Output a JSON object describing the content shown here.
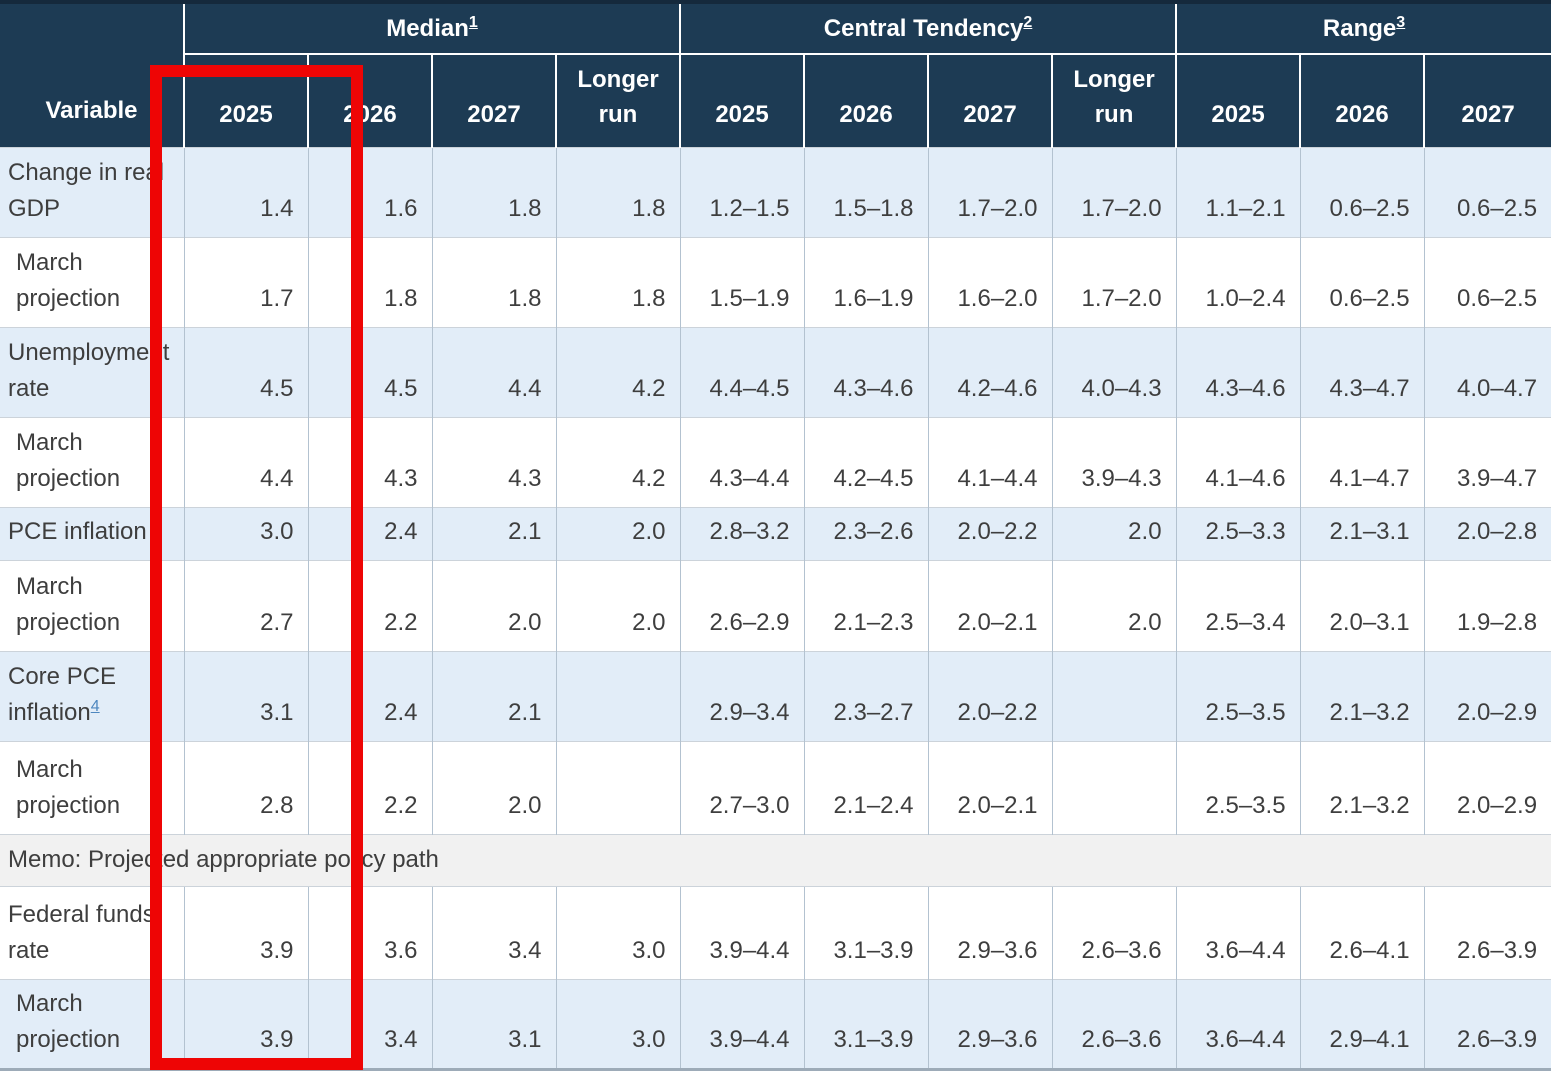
{
  "annotation": {
    "shape": "rectangle",
    "color": "#ee0505",
    "highlights": "Median 2025 column"
  },
  "chart_data": {
    "type": "table",
    "variable_label": "Variable",
    "groups": [
      {
        "label": "Median",
        "footnote": "1",
        "years": [
          "2025",
          "2026",
          "2027",
          "Longer run"
        ]
      },
      {
        "label": "Central Tendency",
        "footnote": "2",
        "years": [
          "2025",
          "2026",
          "2027",
          "Longer run"
        ]
      },
      {
        "label": "Range",
        "footnote": "3",
        "years": [
          "2025",
          "2026",
          "2027"
        ]
      }
    ],
    "rows": [
      {
        "label": "Change in real GDP",
        "shade": "blue",
        "indent": false,
        "median": [
          "1.4",
          "1.6",
          "1.8",
          "1.8"
        ],
        "central_tendency": [
          "1.2–1.5",
          "1.5–1.8",
          "1.7–2.0",
          "1.7–2.0"
        ],
        "range": [
          "1.1–2.1",
          "0.6–2.5",
          "0.6–2.5"
        ]
      },
      {
        "label": "March projection",
        "shade": "white",
        "indent": true,
        "median": [
          "1.7",
          "1.8",
          "1.8",
          "1.8"
        ],
        "central_tendency": [
          "1.5–1.9",
          "1.6–1.9",
          "1.6–2.0",
          "1.7–2.0"
        ],
        "range": [
          "1.0–2.4",
          "0.6–2.5",
          "0.6–2.5"
        ]
      },
      {
        "label": "Unemployment rate",
        "shade": "blue",
        "indent": false,
        "median": [
          "4.5",
          "4.5",
          "4.4",
          "4.2"
        ],
        "central_tendency": [
          "4.4–4.5",
          "4.3–4.6",
          "4.2–4.6",
          "4.0–4.3"
        ],
        "range": [
          "4.3–4.6",
          "4.3–4.7",
          "4.0–4.7"
        ]
      },
      {
        "label": "March projection",
        "shade": "white",
        "indent": true,
        "median": [
          "4.4",
          "4.3",
          "4.3",
          "4.2"
        ],
        "central_tendency": [
          "4.3–4.4",
          "4.2–4.5",
          "4.1–4.4",
          "3.9–4.3"
        ],
        "range": [
          "4.1–4.6",
          "4.1–4.7",
          "3.9–4.7"
        ]
      },
      {
        "label": "PCE inflation",
        "shade": "blue",
        "indent": false,
        "median": [
          "3.0",
          "2.4",
          "2.1",
          "2.0"
        ],
        "central_tendency": [
          "2.8–3.2",
          "2.3–2.6",
          "2.0–2.2",
          "2.0"
        ],
        "range": [
          "2.5–3.3",
          "2.1–3.1",
          "2.0–2.8"
        ]
      },
      {
        "label": "March projection",
        "shade": "white",
        "indent": true,
        "median": [
          "2.7",
          "2.2",
          "2.0",
          "2.0"
        ],
        "central_tendency": [
          "2.6–2.9",
          "2.1–2.3",
          "2.0–2.1",
          "2.0"
        ],
        "range": [
          "2.5–3.4",
          "2.0–3.1",
          "1.9–2.8"
        ]
      },
      {
        "label": "Core PCE inflation",
        "footnote": "4",
        "shade": "blue",
        "indent": false,
        "median": [
          "3.1",
          "2.4",
          "2.1",
          ""
        ],
        "central_tendency": [
          "2.9–3.4",
          "2.3–2.7",
          "2.0–2.2",
          ""
        ],
        "range": [
          "2.5–3.5",
          "2.1–3.2",
          "2.0–2.9"
        ]
      },
      {
        "label": "March projection",
        "shade": "white",
        "indent": true,
        "median": [
          "2.8",
          "2.2",
          "2.0",
          ""
        ],
        "central_tendency": [
          "2.7–3.0",
          "2.1–2.4",
          "2.0–2.1",
          ""
        ],
        "range": [
          "2.5–3.5",
          "2.1–3.2",
          "2.0–2.9"
        ]
      },
      {
        "type": "memo",
        "shade": "memo",
        "label": "Memo: Projected appropriate policy path"
      },
      {
        "label": "Federal funds rate",
        "shade": "white",
        "indent": false,
        "median": [
          "3.9",
          "3.6",
          "3.4",
          "3.0"
        ],
        "central_tendency": [
          "3.9–4.4",
          "3.1–3.9",
          "2.9–3.6",
          "2.6–3.6"
        ],
        "range": [
          "3.6–4.4",
          "2.6–4.1",
          "2.6–3.9"
        ]
      },
      {
        "label": "March projection",
        "shade": "blue",
        "indent": true,
        "median": [
          "3.9",
          "3.4",
          "3.1",
          "3.0"
        ],
        "central_tendency": [
          "3.9–4.4",
          "3.1–3.9",
          "2.9–3.6",
          "2.6–3.6"
        ],
        "range": [
          "3.6–4.4",
          "2.9–4.1",
          "2.6–3.9"
        ]
      }
    ]
  }
}
